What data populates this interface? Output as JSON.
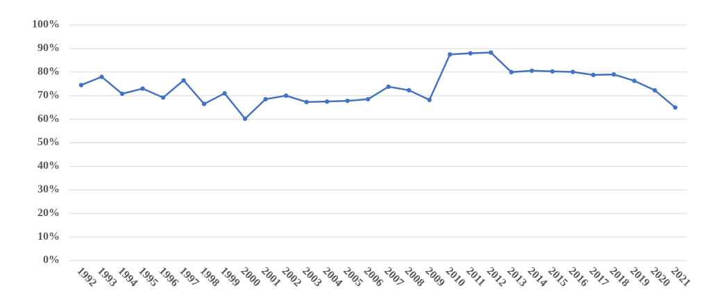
{
  "chart_data": {
    "type": "line",
    "categories": [
      "1992",
      "1993",
      "1994",
      "1995",
      "1996",
      "1997",
      "1998",
      "1999",
      "2000",
      "2001",
      "2002",
      "2003",
      "2004",
      "2005",
      "2006",
      "2007",
      "2008",
      "2009",
      "2010",
      "2011",
      "2012",
      "2013",
      "2014",
      "2015",
      "2016",
      "2017",
      "2018",
      "2019",
      "2020",
      "2021"
    ],
    "values": [
      74.5,
      78,
      70.8,
      73,
      69.2,
      76.5,
      66.5,
      71,
      60.2,
      68.5,
      70,
      67.3,
      67.5,
      67.8,
      68.5,
      73.8,
      72.3,
      68.2,
      87.5,
      88,
      88.3,
      80,
      80.6,
      80.3,
      80.1,
      78.8,
      79,
      76.3,
      72.3,
      65
    ],
    "color": "#4472c4",
    "ylim": [
      0,
      100
    ],
    "yticks": [
      {
        "value": 0,
        "label": "0%"
      },
      {
        "value": 10,
        "label": "10%"
      },
      {
        "value": 20,
        "label": "20%"
      },
      {
        "value": 30,
        "label": "30%"
      },
      {
        "value": 40,
        "label": "40%"
      },
      {
        "value": 50,
        "label": "50%"
      },
      {
        "value": 60,
        "label": "60%"
      },
      {
        "value": 70,
        "label": "70%"
      },
      {
        "value": 80,
        "label": "80%"
      },
      {
        "value": 90,
        "label": "90%"
      },
      {
        "value": 100,
        "label": "100%"
      }
    ],
    "grid": true
  }
}
